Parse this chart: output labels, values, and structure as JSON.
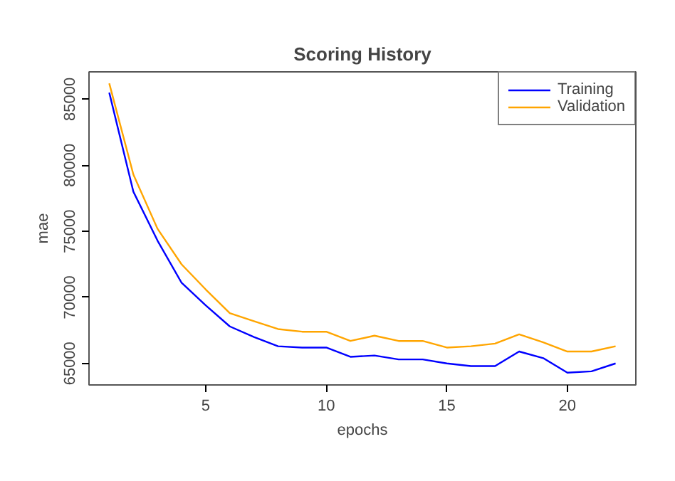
{
  "chart_data": {
    "type": "line",
    "title": "Scoring History",
    "xlabel": "epochs",
    "ylabel": "mae",
    "x": [
      1,
      2,
      3,
      4,
      5,
      6,
      7,
      8,
      9,
      10,
      11,
      12,
      13,
      14,
      15,
      16,
      17,
      18,
      19,
      20,
      21,
      22
    ],
    "series": [
      {
        "name": "Training",
        "color": "#0000ff",
        "values": [
          85500,
          78000,
          74300,
          71100,
          69400,
          67800,
          67000,
          66300,
          66200,
          66200,
          65500,
          65600,
          65300,
          65300,
          65000,
          64800,
          64800,
          65900,
          65400,
          64300,
          64400,
          65000
        ]
      },
      {
        "name": "Validation",
        "color": "#ffa500",
        "values": [
          86200,
          79300,
          75200,
          72500,
          70600,
          68800,
          68200,
          67600,
          67400,
          67400,
          66700,
          67100,
          66700,
          66700,
          66200,
          66300,
          66500,
          67200,
          66600,
          65900,
          65900,
          66300
        ]
      }
    ],
    "xlim": [
      0.16,
      22.84
    ],
    "ylim": [
      63370,
      87070
    ],
    "xticks": [
      5,
      10,
      15,
      20
    ],
    "yticks": [
      65000,
      70000,
      75000,
      80000,
      85000
    ],
    "legend": "top right",
    "grid": false
  }
}
